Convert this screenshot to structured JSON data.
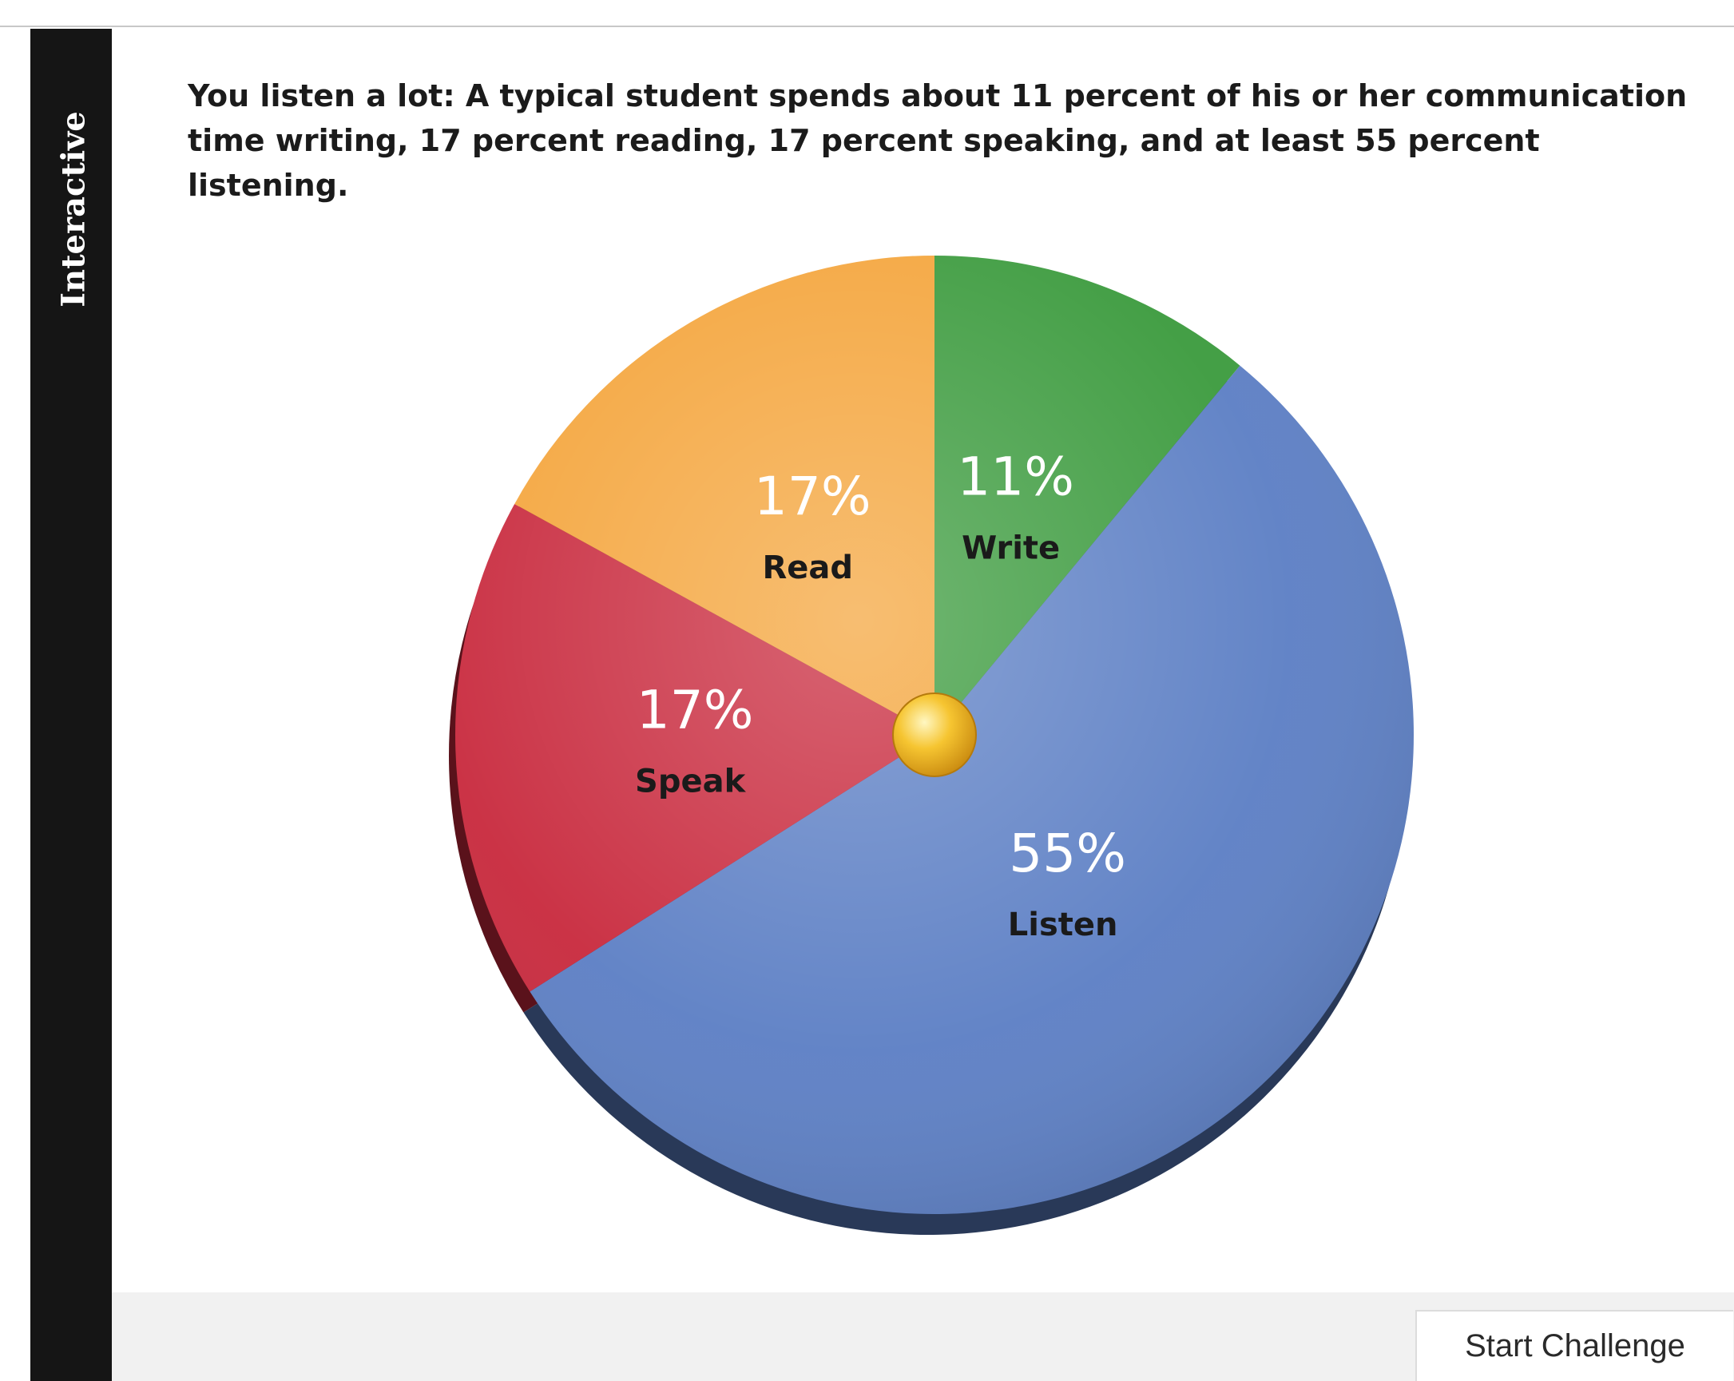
{
  "side_tab": {
    "label": "Interactive"
  },
  "caption": "You listen a lot: A typical student spends about 11 percent of his or her communication time writing, 17 percent reading, 17 percent speaking, and at least 55 percent listening.",
  "colors": {
    "write": "#3a9a3c",
    "listen": "#5b7ec4",
    "speak": "#c8283c",
    "read": "#f4a43a",
    "center_knob": "#f2b21c"
  },
  "chart_data": {
    "type": "pie",
    "title": "",
    "slices": [
      {
        "label": "Write",
        "value": 11,
        "value_label": "11%",
        "color": "#3a9a3c"
      },
      {
        "label": "Listen",
        "value": 55,
        "value_label": "55%",
        "color": "#5b7ec4"
      },
      {
        "label": "Speak",
        "value": 17,
        "value_label": "17%",
        "color": "#c8283c"
      },
      {
        "label": "Read",
        "value": 17,
        "value_label": "17%",
        "color": "#f4a43a"
      }
    ],
    "start_angle": "12 o'clock",
    "direction": "clockwise",
    "legend": "none"
  },
  "footer": {
    "button_label": "Start Challenge"
  }
}
